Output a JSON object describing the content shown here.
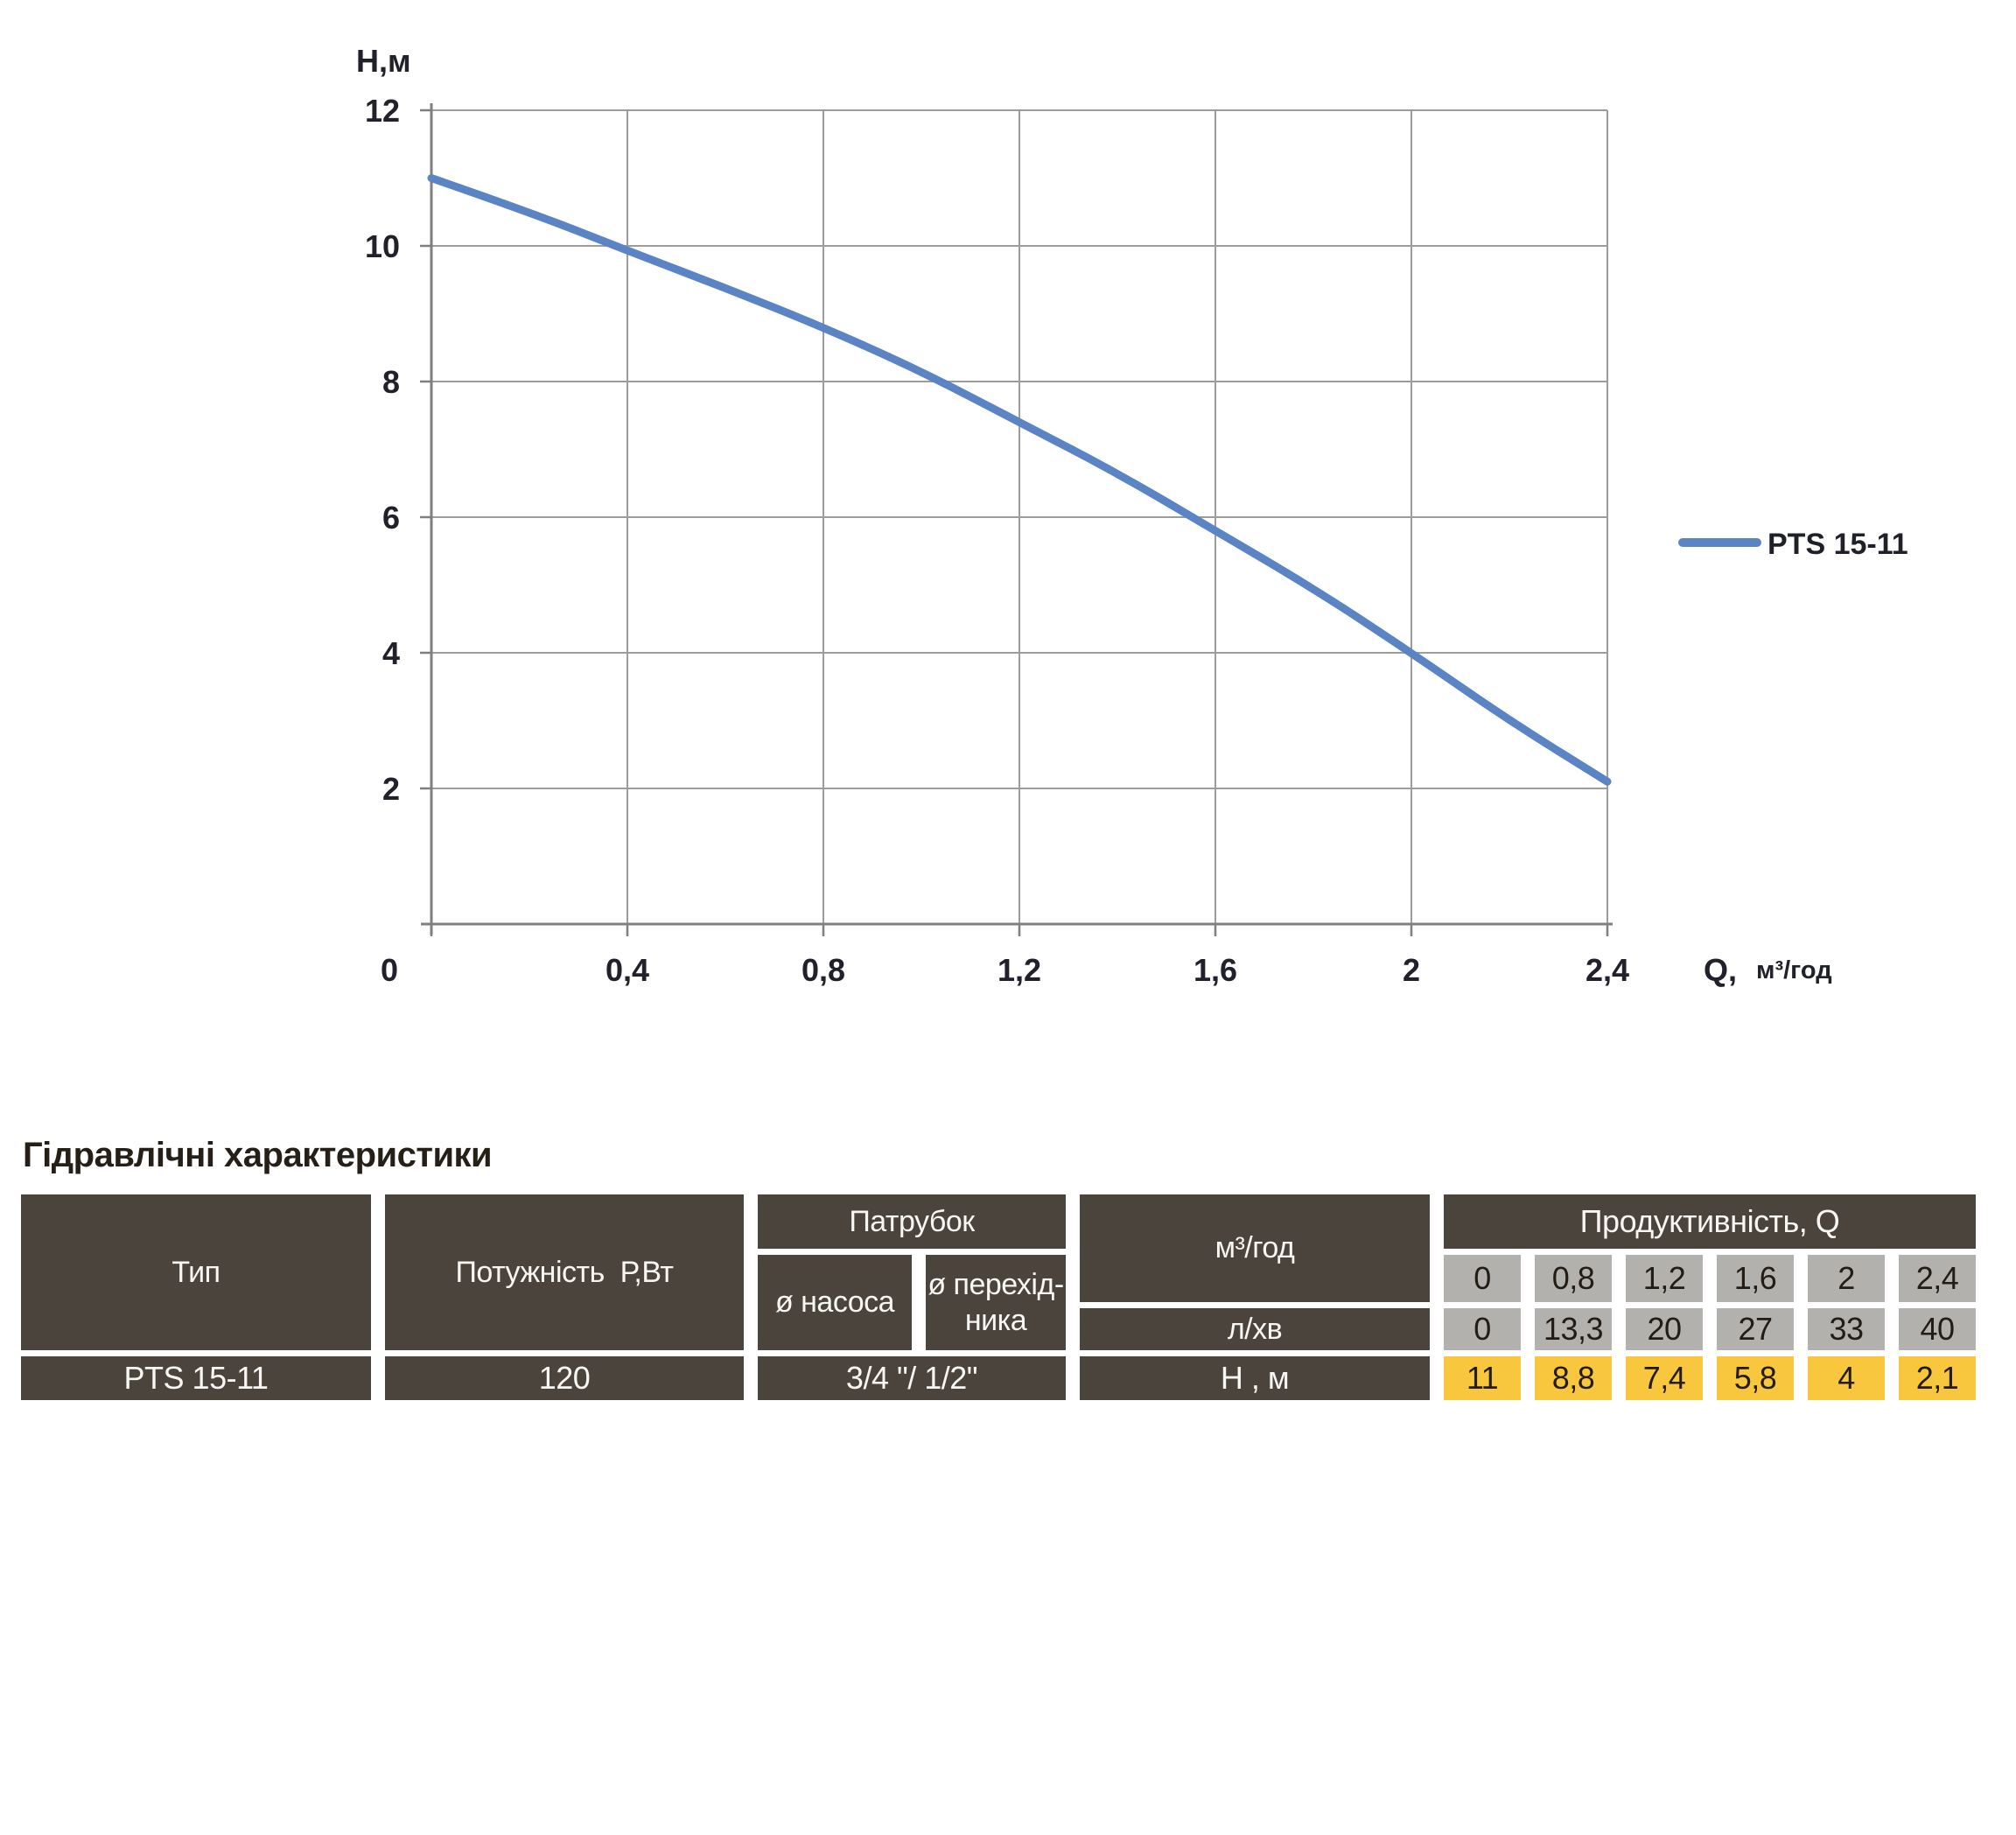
{
  "chart": {
    "y_axis_title": "Н,м",
    "x_axis_prefix": "Q,",
    "x_axis_unit": "м³/год",
    "legend_label": "PTS 15-11"
  },
  "chart_data": {
    "type": "line",
    "title": "",
    "xlabel": "Q, м³/год",
    "ylabel": "Н,м",
    "xlim": [
      0,
      2.4
    ],
    "ylim": [
      0,
      12
    ],
    "grid": true,
    "legend_position": "right",
    "x_ticks": [
      {
        "v": 0,
        "label": "0"
      },
      {
        "v": 0.4,
        "label": "0,4"
      },
      {
        "v": 0.8,
        "label": "0,8"
      },
      {
        "v": 1.2,
        "label": "1,2"
      },
      {
        "v": 1.6,
        "label": "1,6"
      },
      {
        "v": 2,
        "label": "2"
      },
      {
        "v": 2.4,
        "label": "2,4"
      }
    ],
    "y_ticks": [
      {
        "v": 2,
        "label": "2"
      },
      {
        "v": 4,
        "label": "4"
      },
      {
        "v": 6,
        "label": "6"
      },
      {
        "v": 8,
        "label": "8"
      },
      {
        "v": 10,
        "label": "10"
      },
      {
        "v": 12,
        "label": "12"
      }
    ],
    "series": [
      {
        "name": "PTS 15-11",
        "color": "#5b84c4",
        "x": [
          0,
          0.2,
          0.4,
          0.6,
          0.8,
          1.0,
          1.2,
          1.4,
          1.6,
          1.8,
          2.0,
          2.2,
          2.4
        ],
        "y": [
          11,
          10.5,
          9.93,
          9.38,
          8.8,
          8.15,
          7.4,
          6.65,
          5.8,
          4.95,
          4.0,
          3.0,
          2.1
        ]
      }
    ],
    "table_points": {
      "q_m3h": [
        0,
        0.8,
        1.2,
        1.6,
        2,
        2.4
      ],
      "q_lmin": [
        0,
        13.3,
        20,
        27,
        33,
        40
      ],
      "h_m": [
        11,
        8.8,
        7.4,
        5.8,
        4,
        2.1
      ]
    }
  },
  "table": {
    "title": "Гідравлічні характеристики",
    "col_type": "Тип",
    "col_power": "Потужність  Р,Вт",
    "col_pipe": "Патрубок",
    "col_pipe_pump": "ø насоса",
    "col_pipe_adapter": "ø перехід-\nника",
    "col_productivity": "Продуктивність, Q",
    "row_m3h": "м³/год",
    "row_lmin": "л/хв",
    "row_head": "Н , м",
    "type_value": "PTS 15-11",
    "power_value": "120",
    "pipe_value": "3/4 \"/ 1/2\"",
    "q_m3h_values": [
      "0",
      "0,8",
      "1,2",
      "1,6",
      "2",
      "2,4"
    ],
    "q_lmin_values": [
      "0",
      "13,3",
      "20",
      "27",
      "33",
      "40"
    ],
    "h_values": [
      "11",
      "8,8",
      "7,4",
      "5,8",
      "4",
      "2,1"
    ]
  },
  "colors": {
    "dark_cell": "#4a443c",
    "gray_cell": "#b3b1ae",
    "yellow_cell": "#f9c73e",
    "curve_blue": "#5b84c4",
    "grid_gray": "#9c9c9c",
    "axis_gray": "#7f7f7f"
  }
}
